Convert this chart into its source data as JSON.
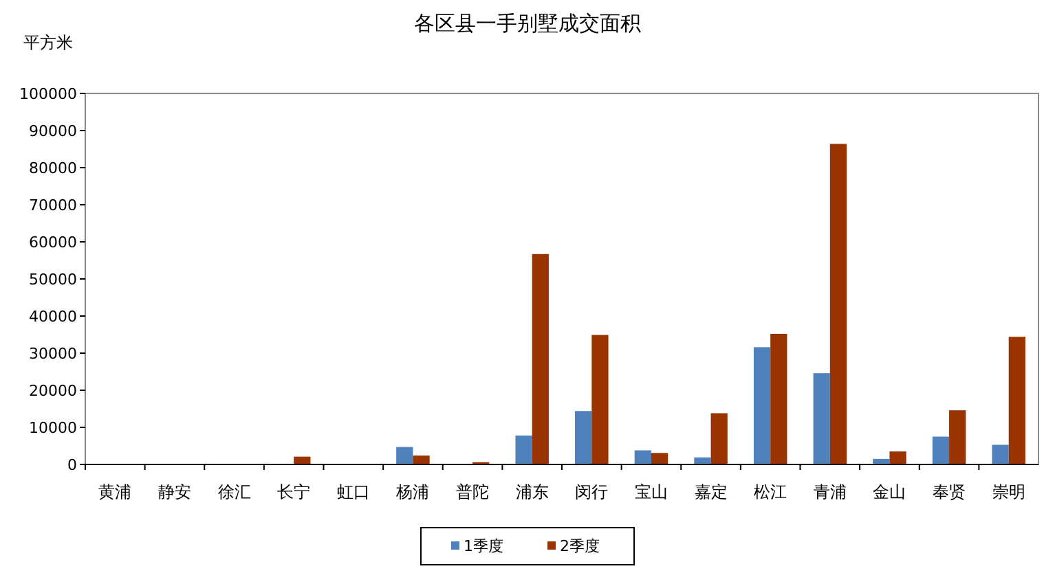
{
  "chart_data": {
    "type": "bar",
    "title": "各区县一手别墅成交面积",
    "ylabel": "平方米",
    "categories": [
      "黄浦",
      "静安",
      "徐汇",
      "长宁",
      "虹口",
      "杨浦",
      "普陀",
      "浦东",
      "闵行",
      "宝山",
      "嘉定",
      "松江",
      "青浦",
      "金山",
      "奉贤",
      "崇明"
    ],
    "series": [
      {
        "name": "1季度",
        "color": "#4f81bd",
        "values": [
          0,
          0,
          0,
          0,
          0,
          4700,
          0,
          7800,
          14400,
          3800,
          1900,
          31600,
          24600,
          1500,
          7500,
          5300
        ]
      },
      {
        "name": "2季度",
        "color": "#993300",
        "values": [
          0,
          0,
          0,
          2100,
          0,
          2400,
          600,
          56700,
          34900,
          3100,
          13800,
          35200,
          86400,
          3500,
          14600,
          34400
        ]
      }
    ],
    "ylim": [
      0,
      100000
    ],
    "yticks": [
      0,
      10000,
      20000,
      30000,
      40000,
      50000,
      60000,
      70000,
      80000,
      90000,
      100000
    ],
    "grid": false,
    "legend": "bottom"
  }
}
